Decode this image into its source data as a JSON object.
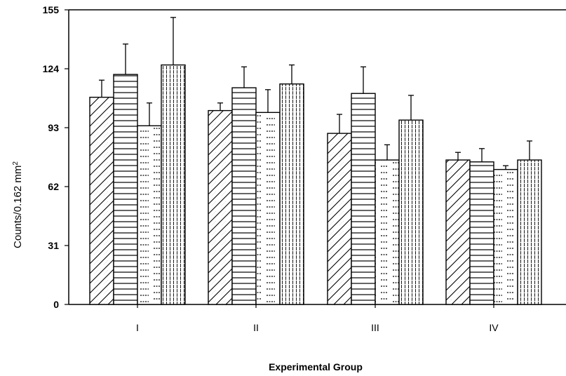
{
  "chart_data": {
    "type": "bar",
    "title": "",
    "xlabel": "Experimental Group",
    "ylabel_main": "Counts/0.162 mm",
    "ylabel_sup": "2",
    "ylim": [
      0,
      155
    ],
    "yticks": [
      0,
      31,
      62,
      93,
      124,
      155
    ],
    "categories": [
      "I",
      "II",
      "III",
      "IV"
    ],
    "series": [
      {
        "pattern": "diagonal",
        "values": [
          109,
          102,
          90,
          76
        ],
        "errors": [
          9,
          4,
          10,
          4
        ]
      },
      {
        "pattern": "horizontal-lines",
        "values": [
          121,
          114,
          111,
          75
        ],
        "errors": [
          16,
          11,
          14,
          7
        ]
      },
      {
        "pattern": "dashes",
        "values": [
          94,
          101,
          76,
          71
        ],
        "errors": [
          12,
          12,
          8,
          2
        ]
      },
      {
        "pattern": "vertical-lines",
        "values": [
          126,
          116,
          97,
          76
        ],
        "errors": [
          25,
          10,
          13,
          10
        ]
      }
    ],
    "grid": false,
    "legend": "none"
  }
}
